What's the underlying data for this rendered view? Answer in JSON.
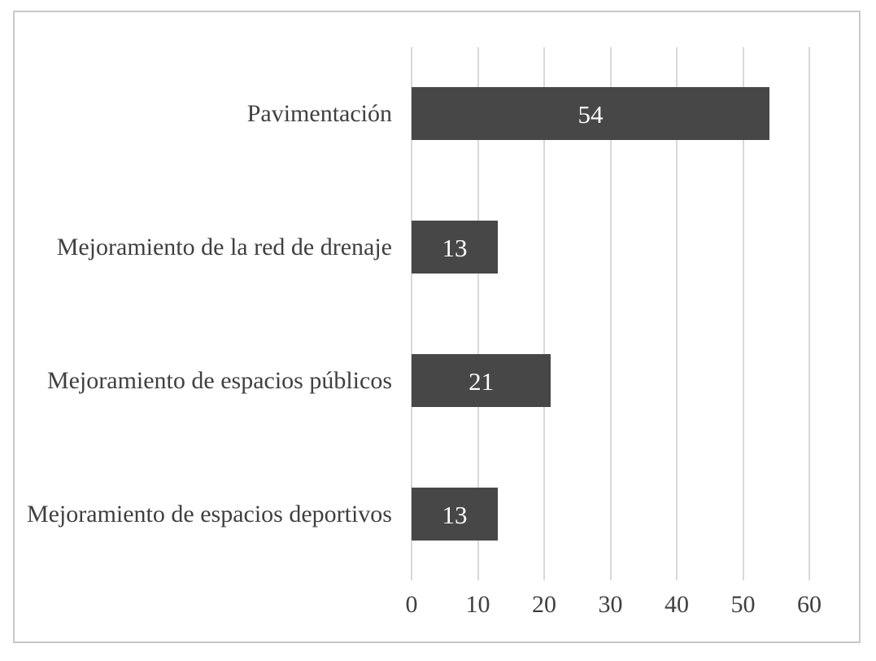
{
  "chart_data": {
    "type": "bar",
    "orientation": "horizontal",
    "title": "",
    "xlabel": "",
    "ylabel": "",
    "categories": [
      "Pavimentación",
      "Mejoramiento de la red de drenaje",
      "Mejoramiento de espacios públicos",
      "Mejoramiento de espacios deportivos"
    ],
    "values": [
      54,
      13,
      21,
      13
    ],
    "value_labels": [
      "54",
      "13",
      "21",
      "13"
    ],
    "xlim": [
      0,
      60
    ],
    "xticks": [
      0,
      10,
      20,
      30,
      40,
      50,
      60
    ],
    "xtick_labels": [
      "0",
      "10",
      "20",
      "30",
      "40",
      "50",
      "60"
    ],
    "grid": true,
    "legend": false,
    "colors": {
      "bar": "#474747",
      "value_label": "#ffffff",
      "gridline": "#d9d9d9",
      "axis_text": "#404040",
      "category_text": "#404040",
      "frame_border": "#c8c8c8",
      "background": "#ffffff"
    }
  }
}
